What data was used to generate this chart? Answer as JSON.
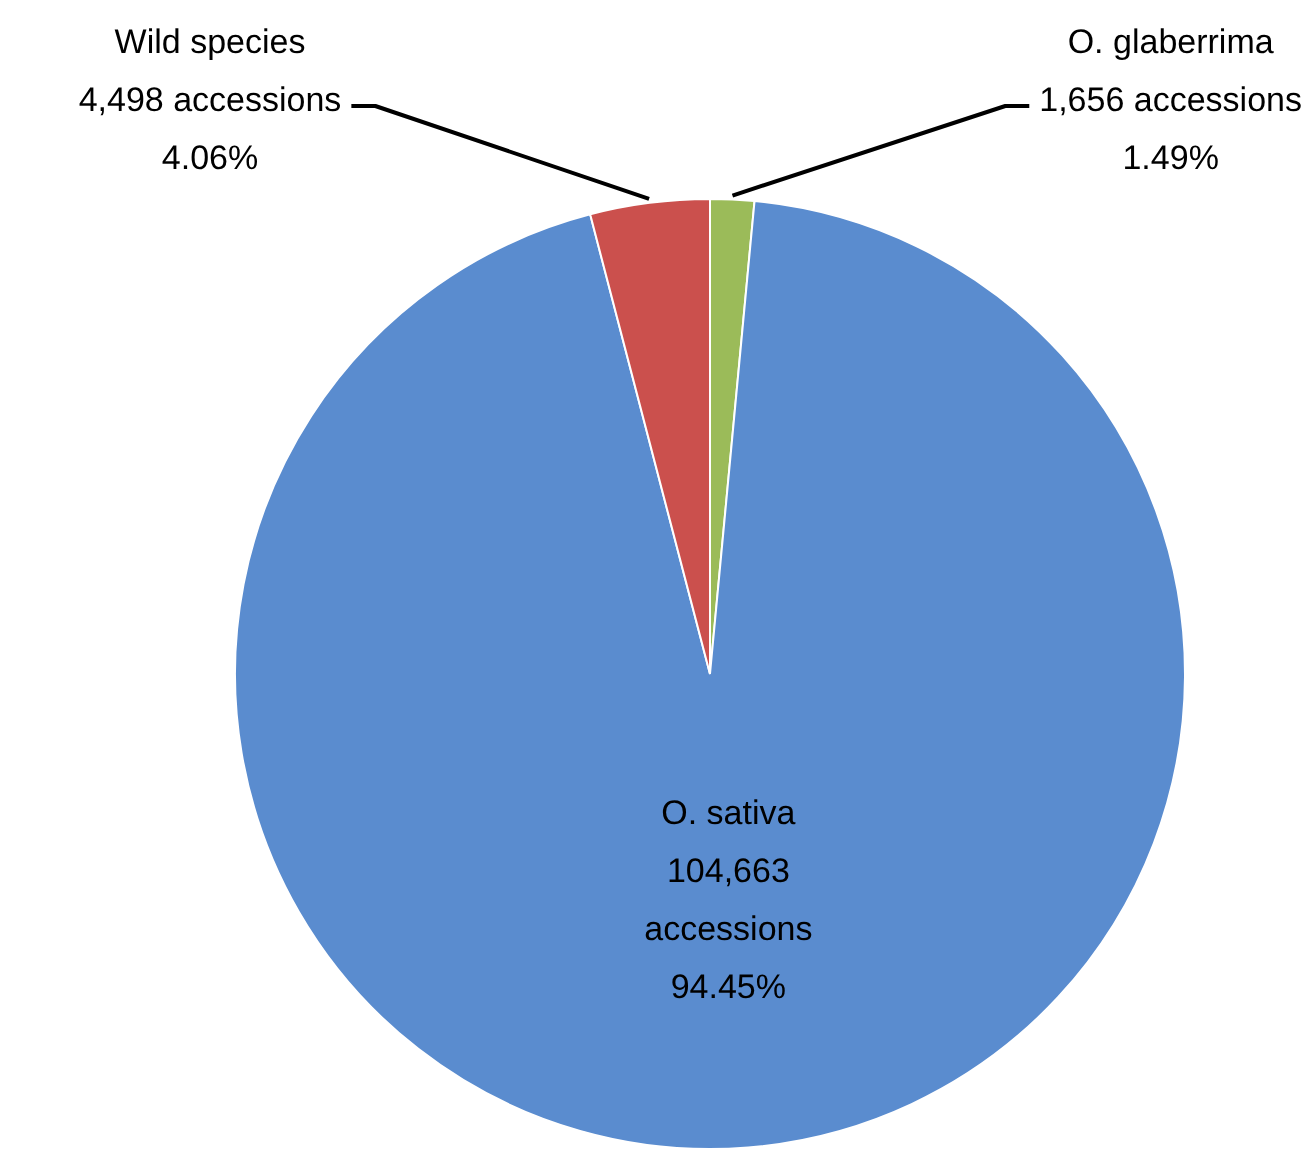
{
  "chart_data": {
    "type": "pie",
    "categories": [
      "O. glaberrima",
      "O. sativa",
      "Wild species"
    ],
    "values": [
      1656,
      104663,
      4498
    ],
    "colors": [
      "#9bbb59",
      "#5a8ccf",
      "#cb504d"
    ],
    "value_labels": [
      "1,656 accessions\n1.49%",
      "104,663\naccessions\n94.45%",
      "4,498 accessions\n4.06%"
    ]
  }
}
